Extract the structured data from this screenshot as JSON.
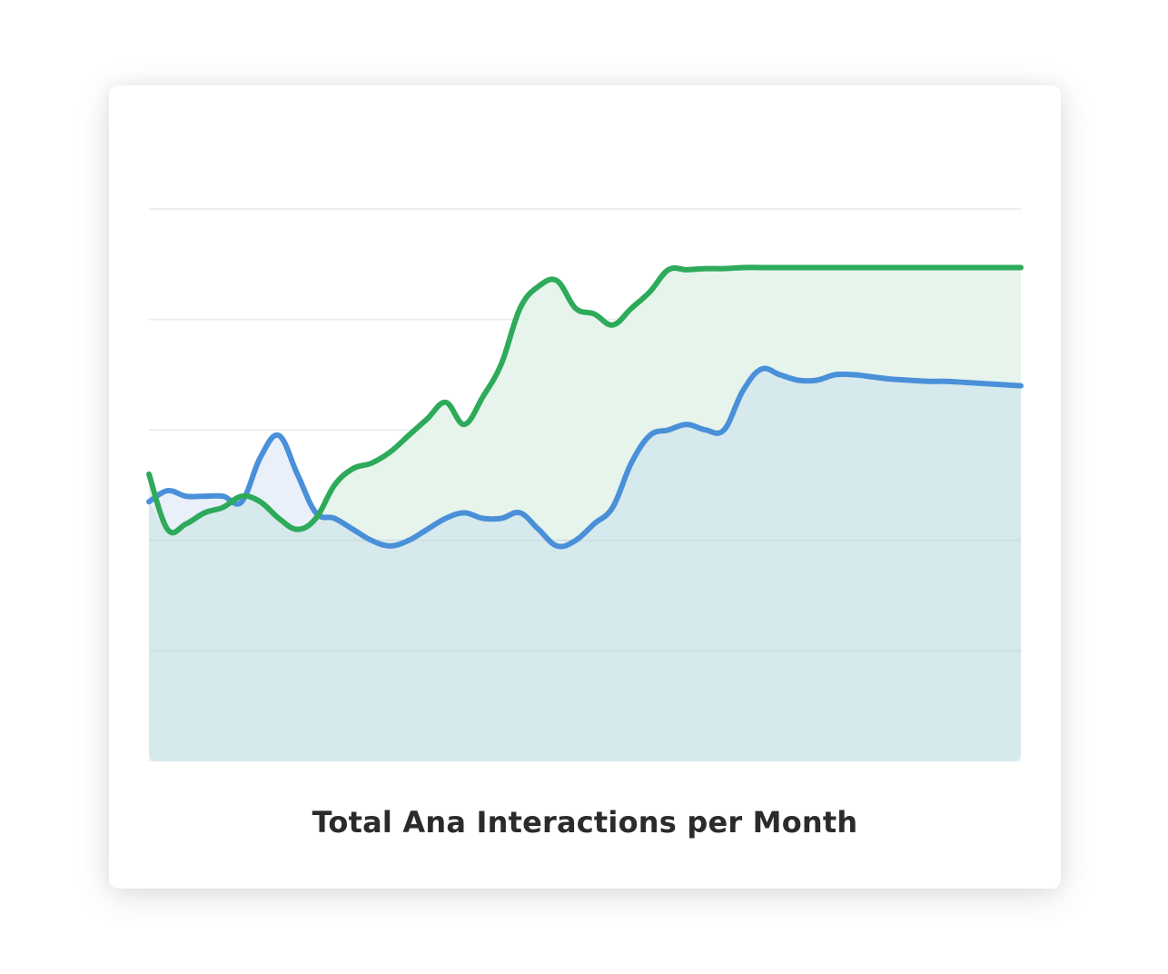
{
  "chart_data": {
    "type": "area",
    "title": "Total Ana Interactions per Month",
    "xlabel": "",
    "ylabel": "",
    "ylim": [
      0,
      5
    ],
    "grid": true,
    "x": [
      0,
      1,
      2,
      3,
      4,
      5,
      6,
      7,
      8,
      9,
      10,
      11,
      12,
      13,
      14,
      15,
      16,
      17,
      18,
      19,
      20,
      21,
      22,
      23,
      24,
      25,
      26,
      27,
      28,
      29,
      30,
      31,
      32,
      33,
      34,
      35,
      36,
      37,
      38,
      39,
      40,
      41,
      42,
      43,
      44,
      45,
      46,
      47
    ],
    "series": [
      {
        "color": "#4a90d9",
        "fill": "#e9f0fa",
        "values": [
          2.35,
          2.45,
          2.4,
          2.4,
          2.4,
          2.35,
          2.75,
          2.95,
          2.6,
          2.25,
          2.2,
          2.1,
          2.0,
          1.95,
          2.0,
          2.1,
          2.2,
          2.25,
          2.2,
          2.2,
          2.25,
          2.1,
          1.95,
          2.0,
          2.15,
          2.3,
          2.7,
          2.95,
          3.0,
          3.05,
          3.0,
          3.0,
          3.35,
          3.55,
          3.5,
          3.45,
          3.45,
          3.5,
          3.5,
          3.48,
          3.46,
          3.45,
          3.44,
          3.44,
          3.43,
          3.42,
          3.41,
          3.4
        ]
      },
      {
        "color": "#2daa5a",
        "fill": "#e6f4ec",
        "values": [
          2.6,
          2.1,
          2.15,
          2.25,
          2.3,
          2.4,
          2.35,
          2.2,
          2.1,
          2.2,
          2.5,
          2.65,
          2.7,
          2.8,
          2.95,
          3.1,
          3.25,
          3.05,
          3.3,
          3.6,
          4.1,
          4.3,
          4.35,
          4.1,
          4.05,
          3.95,
          4.1,
          4.25,
          4.45,
          4.45,
          4.46,
          4.46,
          4.47,
          4.47,
          4.47,
          4.47,
          4.47,
          4.47,
          4.47,
          4.47,
          4.47,
          4.47,
          4.47,
          4.47,
          4.47,
          4.47,
          4.47,
          4.47
        ]
      }
    ]
  },
  "chart_title": "Total Ana Interactions per Month"
}
